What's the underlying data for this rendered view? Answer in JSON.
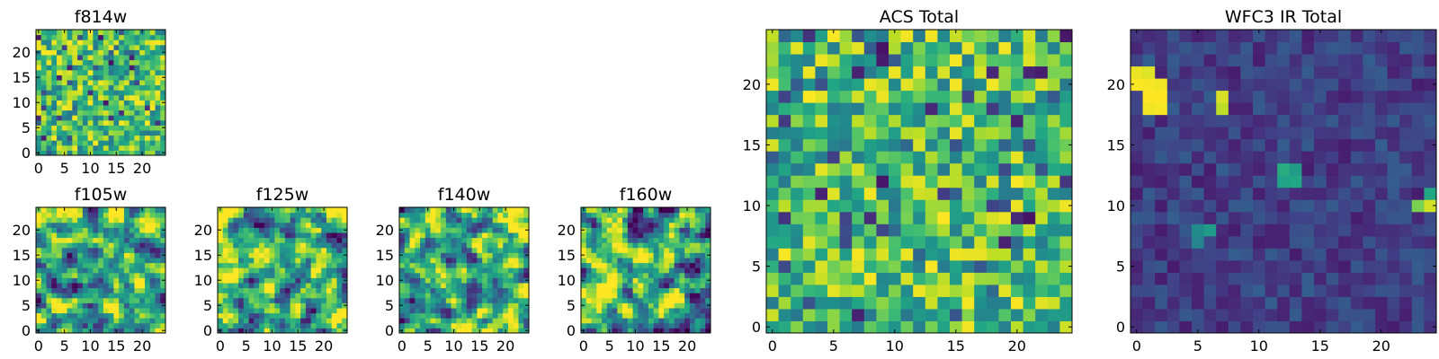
{
  "chart_data": [
    {
      "type": "heatmap",
      "id": "f814w",
      "title": "f814w",
      "style": "acs",
      "x_ticks": [
        "0",
        "5",
        "10",
        "15",
        "20"
      ],
      "y_ticks": [
        "0",
        "5",
        "10",
        "15",
        "20"
      ],
      "xlim": [
        -0.5,
        24.5
      ],
      "ylim": [
        -0.5,
        24.5
      ],
      "grid_size": 25,
      "colormap": "viridis",
      "seed": 11
    },
    {
      "type": "heatmap",
      "id": "f105w",
      "title": "f105w",
      "style": "smooth",
      "x_ticks": [
        "0",
        "5",
        "10",
        "15",
        "20"
      ],
      "y_ticks": [
        "0",
        "5",
        "10",
        "15",
        "20"
      ],
      "xlim": [
        -0.5,
        24.5
      ],
      "ylim": [
        -0.5,
        24.5
      ],
      "grid_size": 25,
      "colormap": "viridis",
      "seed": 23
    },
    {
      "type": "heatmap",
      "id": "f125w",
      "title": "f125w",
      "style": "smooth",
      "x_ticks": [
        "0",
        "5",
        "10",
        "15",
        "20"
      ],
      "y_ticks": [
        "0",
        "5",
        "10",
        "15",
        "20"
      ],
      "xlim": [
        -0.5,
        24.5
      ],
      "ylim": [
        -0.5,
        24.5
      ],
      "grid_size": 25,
      "colormap": "viridis",
      "seed": 37
    },
    {
      "type": "heatmap",
      "id": "f140w",
      "title": "f140w",
      "style": "smooth",
      "x_ticks": [
        "0",
        "5",
        "10",
        "15",
        "20"
      ],
      "y_ticks": [
        "0",
        "5",
        "10",
        "15",
        "20"
      ],
      "xlim": [
        -0.5,
        24.5
      ],
      "ylim": [
        -0.5,
        24.5
      ],
      "grid_size": 25,
      "colormap": "viridis",
      "seed": 41
    },
    {
      "type": "heatmap",
      "id": "f160w",
      "title": "f160w",
      "style": "smooth",
      "x_ticks": [
        "0",
        "5",
        "10",
        "15",
        "20"
      ],
      "y_ticks": [
        "0",
        "5",
        "10",
        "15",
        "20"
      ],
      "xlim": [
        -0.5,
        24.5
      ],
      "ylim": [
        -0.5,
        24.5
      ],
      "grid_size": 25,
      "colormap": "viridis",
      "seed": 53
    },
    {
      "type": "heatmap",
      "id": "acs_total",
      "title": "ACS Total",
      "style": "acs",
      "x_ticks": [
        "0",
        "5",
        "10",
        "15",
        "20"
      ],
      "y_ticks": [
        "0",
        "5",
        "10",
        "15",
        "20"
      ],
      "xlim": [
        -0.5,
        24.5
      ],
      "ylim": [
        -0.5,
        24.5
      ],
      "grid_size": 25,
      "colormap": "viridis",
      "seed": 67
    },
    {
      "type": "heatmap",
      "id": "wfc3_ir_total",
      "title": "WFC3 IR Total",
      "style": "ir",
      "x_ticks": [
        "0",
        "5",
        "10",
        "15",
        "20"
      ],
      "y_ticks": [
        "0",
        "5",
        "10",
        "15",
        "20"
      ],
      "xlim": [
        -0.5,
        24.5
      ],
      "ylim": [
        -0.5,
        24.5
      ],
      "grid_size": 25,
      "colormap": "viridis",
      "seed": 79,
      "bright_pixels": [
        {
          "col": 0,
          "row": 21,
          "value": 0.97
        },
        {
          "col": 1,
          "row": 21,
          "value": 0.95
        },
        {
          "col": 0,
          "row": 20,
          "value": 1.0
        },
        {
          "col": 1,
          "row": 20,
          "value": 0.99
        },
        {
          "col": 2,
          "row": 20,
          "value": 0.98
        },
        {
          "col": 1,
          "row": 19,
          "value": 1.0
        },
        {
          "col": 2,
          "row": 19,
          "value": 1.0
        },
        {
          "col": 1,
          "row": 18,
          "value": 0.98
        },
        {
          "col": 2,
          "row": 18,
          "value": 0.99
        },
        {
          "col": 7,
          "row": 19,
          "value": 0.94
        },
        {
          "col": 7,
          "row": 18,
          "value": 0.9
        },
        {
          "col": 12,
          "row": 13,
          "value": 0.62
        },
        {
          "col": 13,
          "row": 13,
          "value": 0.55
        },
        {
          "col": 12,
          "row": 12,
          "value": 0.58
        },
        {
          "col": 13,
          "row": 12,
          "value": 0.6
        },
        {
          "col": 24,
          "row": 10,
          "value": 0.93
        },
        {
          "col": 23,
          "row": 10,
          "value": 0.8
        },
        {
          "col": 24,
          "row": 11,
          "value": 0.6
        },
        {
          "col": 5,
          "row": 8,
          "value": 0.48
        },
        {
          "col": 6,
          "row": 8,
          "value": 0.55
        },
        {
          "col": 5,
          "row": 7,
          "value": 0.45
        }
      ]
    }
  ]
}
